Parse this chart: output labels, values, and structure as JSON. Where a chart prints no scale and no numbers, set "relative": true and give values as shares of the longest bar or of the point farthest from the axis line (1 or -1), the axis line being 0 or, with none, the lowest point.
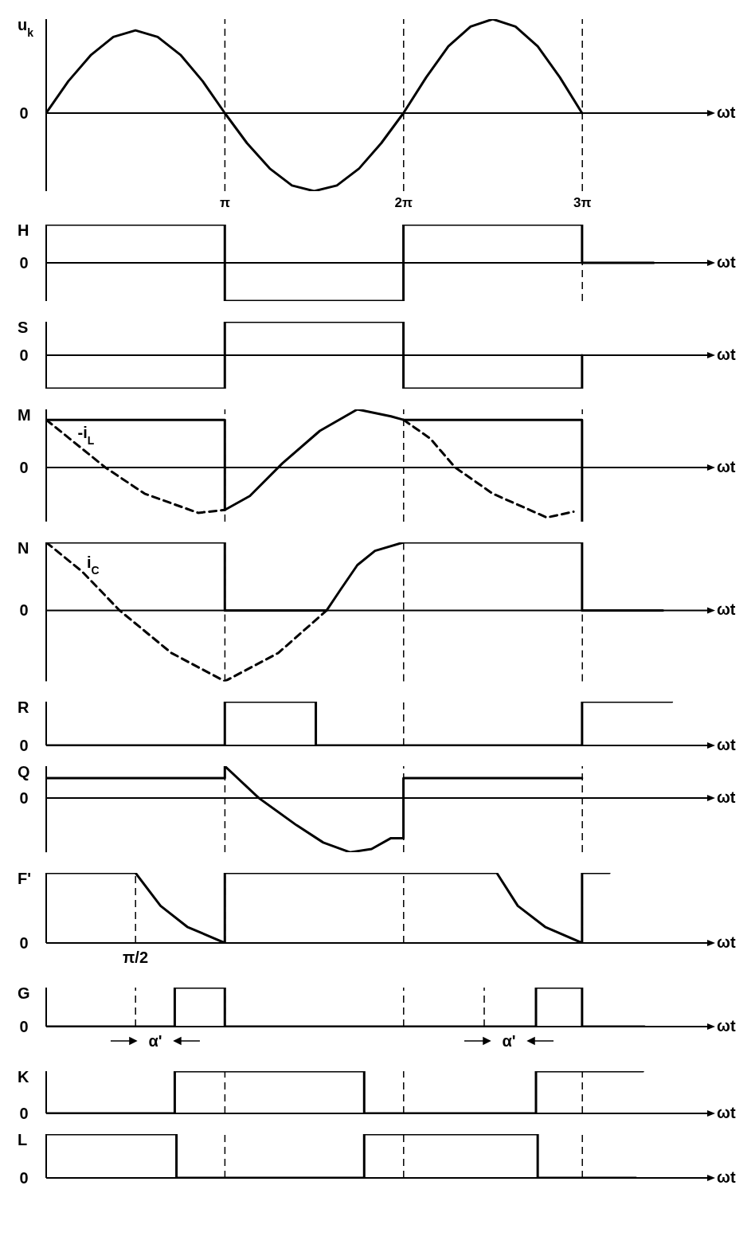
{
  "chart_data": [
    {
      "type": "line",
      "ylabel": "u$_{k}$",
      "xlabel": "ωt",
      "relative": true,
      "xlim": [
        0,
        11.62
      ],
      "xticks": [
        {
          "value": 3.1416,
          "label": "π"
        },
        {
          "value": 6.2832,
          "label": "2π"
        },
        {
          "value": 9.4248,
          "label": "3π"
        }
      ],
      "ref_lines": [
        {
          "axis": "y",
          "value": 0,
          "label": "0"
        },
        {
          "axis": "x",
          "value": 3.1416,
          "line_style": "dashed"
        },
        {
          "axis": "x",
          "value": 6.2832,
          "line_style": "dashed"
        },
        {
          "axis": "x",
          "value": 9.4248,
          "line_style": "dashed"
        }
      ],
      "series": [
        {
          "color": "#000000",
          "x": [
            0,
            0.39,
            0.79,
            1.18,
            1.57,
            1.96,
            2.36,
            2.75,
            3.14,
            3.53,
            3.93,
            4.32,
            4.71,
            5.11,
            5.5,
            5.89,
            6.28,
            6.68,
            7.07,
            7.46,
            7.85,
            8.25,
            8.64,
            9.03,
            9.42
          ],
          "values": [
            0,
            0.34,
            0.62,
            0.81,
            0.88,
            0.81,
            0.62,
            0.34,
            0,
            -0.32,
            -0.59,
            -0.77,
            -0.83,
            -0.77,
            -0.59,
            -0.32,
            0,
            0.38,
            0.71,
            0.92,
            1,
            0.92,
            0.71,
            0.38,
            0
          ]
        }
      ]
    },
    {
      "type": "line",
      "ylabel": "H",
      "xlabel": "ωt",
      "relative": true,
      "xlim": [
        0,
        11.62
      ],
      "tick_labels": false,
      "ref_lines": [
        {
          "axis": "y",
          "value": 0,
          "label": "0"
        },
        {
          "axis": "x",
          "value": 9.4248,
          "line_style": "dashed"
        }
      ],
      "series": [
        {
          "color": "#000000",
          "x": [
            0,
            3.14,
            3.14,
            6.28,
            6.28,
            9.42,
            9.42,
            10.68
          ],
          "values": [
            1,
            1,
            -1,
            -1,
            1,
            1,
            0,
            0
          ]
        }
      ]
    },
    {
      "type": "line",
      "ylabel": "S",
      "xlabel": "ωt",
      "relative": true,
      "xlim": [
        0,
        11.62
      ],
      "tick_labels": false,
      "ref_lines": [
        {
          "axis": "y",
          "value": 0,
          "label": "0"
        }
      ],
      "series": [
        {
          "color": "#000000",
          "x": [
            0,
            3.14,
            3.14,
            6.28,
            6.28,
            9.42,
            9.42
          ],
          "values": [
            -1,
            -1,
            1,
            1,
            -1,
            -1,
            0
          ]
        }
      ]
    },
    {
      "type": "line",
      "ylabel": "M",
      "xlabel": "ωt",
      "relative": true,
      "xlim": [
        0,
        11.62
      ],
      "tick_labels": false,
      "ref_lines": [
        {
          "axis": "y",
          "value": 0,
          "label": "0"
        },
        {
          "axis": "x",
          "value": 3.1416,
          "line_style": "dashed"
        },
        {
          "axis": "x",
          "value": 6.2832,
          "line_style": "dashed"
        },
        {
          "axis": "x",
          "value": 9.4248,
          "line_style": "dashed"
        }
      ],
      "series": [
        {
          "color": "#000000",
          "x": [
            0,
            3.14,
            3.14,
            3.58,
            4.15,
            4.81,
            5.47,
            6.06,
            6.28,
            9.42,
            9.42
          ],
          "values": [
            0.82,
            0.82,
            -0.73,
            -0.49,
            0.07,
            0.63,
            1,
            0.88,
            0.82,
            0.82,
            -0.93
          ]
        },
        {
          "name": "-i$_{L}$",
          "color": "#000000",
          "line_style": "dashed",
          "x": [
            0,
            0.47,
            1.04,
            1.73,
            2.67,
            3.14,
            4.71,
            6.28,
            6.75,
            7.19,
            7.85,
            8.8,
            9.27
          ],
          "values": [
            0.82,
            0.45,
            0,
            -0.45,
            -0.78,
            -0.73,
            null,
            0.82,
            0.5,
            0,
            -0.45,
            -0.86,
            -0.76
          ]
        }
      ]
    },
    {
      "type": "line",
      "ylabel": "N",
      "xlabel": "ωt",
      "relative": true,
      "xlim": [
        0,
        11.62
      ],
      "tick_labels": false,
      "ref_lines": [
        {
          "axis": "y",
          "value": 0,
          "label": "0"
        },
        {
          "axis": "x",
          "value": 3.1416,
          "line_style": "dashed"
        },
        {
          "axis": "x",
          "value": 6.2832,
          "line_style": "dashed"
        },
        {
          "axis": "x",
          "value": 9.4248,
          "line_style": "dashed"
        }
      ],
      "series": [
        {
          "color": "#000000",
          "x": [
            0,
            3.14,
            3.14,
            4.93,
            5.18,
            5.47,
            5.78,
            6.28,
            9.42,
            9.42,
            10.84
          ],
          "values": [
            0.96,
            0.96,
            0,
            0,
            0.3,
            0.64,
            0.84,
            0.96,
            0.96,
            0,
            0
          ]
        },
        {
          "name": "i$_{C}$",
          "color": "#000000",
          "line_style": "dashed",
          "x": [
            0,
            0.63,
            1.29,
            2.2,
            3.14,
            4.08,
            4.93
          ],
          "values": [
            0.96,
            0.55,
            0,
            -0.6,
            -1,
            -0.6,
            0
          ]
        }
      ]
    },
    {
      "type": "line",
      "ylabel": "R",
      "xlabel": "ωt",
      "relative": true,
      "xlim": [
        0,
        11.62
      ],
      "tick_labels": false,
      "ref_lines": [
        {
          "axis": "x",
          "value": 6.2832,
          "line_style": "dashed"
        }
      ],
      "annotations": [
        "0"
      ],
      "series": [
        {
          "color": "#000000",
          "x": [
            0,
            3.14,
            3.14,
            4.74,
            4.74,
            9.42,
            9.42,
            11.0
          ],
          "values": [
            0,
            0,
            1,
            1,
            0,
            0,
            1,
            1
          ]
        }
      ]
    },
    {
      "type": "line",
      "ylabel": "Q",
      "xlabel": "ωt",
      "relative": true,
      "xlim": [
        0,
        11.62
      ],
      "tick_labels": false,
      "ref_lines": [
        {
          "axis": "y",
          "value": 0,
          "label": "0"
        },
        {
          "axis": "x",
          "value": 3.1416,
          "line_style": "dashed"
        },
        {
          "axis": "x",
          "value": 6.2832,
          "line_style": "dashed"
        },
        {
          "axis": "x",
          "value": 9.4248,
          "line_style": "dashed"
        }
      ],
      "series": [
        {
          "color": "#000000",
          "x": [
            0,
            3.14,
            3.14,
            3.74,
            4.4,
            4.87,
            5.34,
            5.72,
            6.06,
            6.28,
            6.28,
            9.42
          ],
          "values": [
            0.37,
            0.37,
            0.59,
            0,
            -0.5,
            -0.82,
            -1,
            -0.94,
            -0.74,
            -0.74,
            0.37,
            0.37
          ]
        }
      ]
    },
    {
      "type": "line",
      "ylabel": "F'",
      "xlabel": "ωt",
      "relative": true,
      "xlim": [
        0,
        11.62
      ],
      "tick_labels": false,
      "ref_lines": [
        {
          "axis": "x",
          "value": 1.5708,
          "line_style": "dashed"
        },
        {
          "axis": "x",
          "value": 3.1416,
          "line_style": "dashed"
        },
        {
          "axis": "x",
          "value": 6.2832,
          "line_style": "dashed"
        }
      ],
      "annotations": [
        "0",
        "π/2"
      ],
      "series": [
        {
          "color": "#000000",
          "x": [
            0,
            1.57,
            2.01,
            2.48,
            3.14,
            3.14,
            7.92,
            8.29,
            8.77,
            9.42,
            9.42,
            9.9
          ],
          "values": [
            1,
            1,
            0.53,
            0.23,
            0,
            1,
            1,
            0.53,
            0.23,
            0,
            1,
            1
          ]
        }
      ]
    },
    {
      "type": "line",
      "ylabel": "G",
      "xlabel": "ωt",
      "relative": true,
      "xlim": [
        0,
        11.62
      ],
      "tick_labels": false,
      "ref_lines": [
        {
          "axis": "x",
          "value": 1.5708,
          "line_style": "dashed"
        },
        {
          "axis": "x",
          "value": 3.1416,
          "line_style": "dashed"
        },
        {
          "axis": "x",
          "value": 6.2832,
          "line_style": "dashed"
        },
        {
          "axis": "x",
          "value": 7.7,
          "line_style": "dashed"
        }
      ],
      "annotations": [
        "0",
        "α'",
        "α'"
      ],
      "series": [
        {
          "color": "#000000",
          "x": [
            0,
            2.26,
            2.26,
            3.14,
            3.14,
            8.61,
            8.61,
            9.42,
            9.42,
            10.52
          ],
          "values": [
            0,
            0,
            1,
            1,
            0,
            0,
            1,
            1,
            0,
            0
          ]
        }
      ]
    },
    {
      "type": "line",
      "ylabel": "K",
      "xlabel": "ωt",
      "relative": true,
      "xlim": [
        0,
        11.62
      ],
      "tick_labels": false,
      "ref_lines": [
        {
          "axis": "x",
          "value": 3.1416,
          "line_style": "dashed"
        },
        {
          "axis": "x",
          "value": 6.2832,
          "line_style": "dashed"
        },
        {
          "axis": "x",
          "value": 9.4248,
          "line_style": "dashed"
        }
      ],
      "annotations": [
        "0"
      ],
      "series": [
        {
          "color": "#000000",
          "x": [
            0,
            2.26,
            2.26,
            5.59,
            5.59,
            8.61,
            8.61,
            10.49
          ],
          "values": [
            0,
            0,
            1,
            1,
            0,
            0,
            1,
            1
          ]
        }
      ]
    },
    {
      "type": "line",
      "ylabel": "L",
      "xlabel": "ωt",
      "relative": true,
      "xlim": [
        0,
        11.62
      ],
      "tick_labels": false,
      "ref_lines": [
        {
          "axis": "x",
          "value": 3.1416,
          "line_style": "dashed"
        },
        {
          "axis": "x",
          "value": 6.2832,
          "line_style": "dashed"
        },
        {
          "axis": "x",
          "value": 9.4248,
          "line_style": "dashed"
        }
      ],
      "annotations": [
        "0"
      ],
      "series": [
        {
          "color": "#000000",
          "x": [
            0,
            2.29,
            2.29,
            5.59,
            5.59,
            8.64,
            8.64,
            10.37
          ],
          "values": [
            1,
            1,
            0,
            0,
            1,
            1,
            0,
            0
          ]
        }
      ]
    }
  ]
}
